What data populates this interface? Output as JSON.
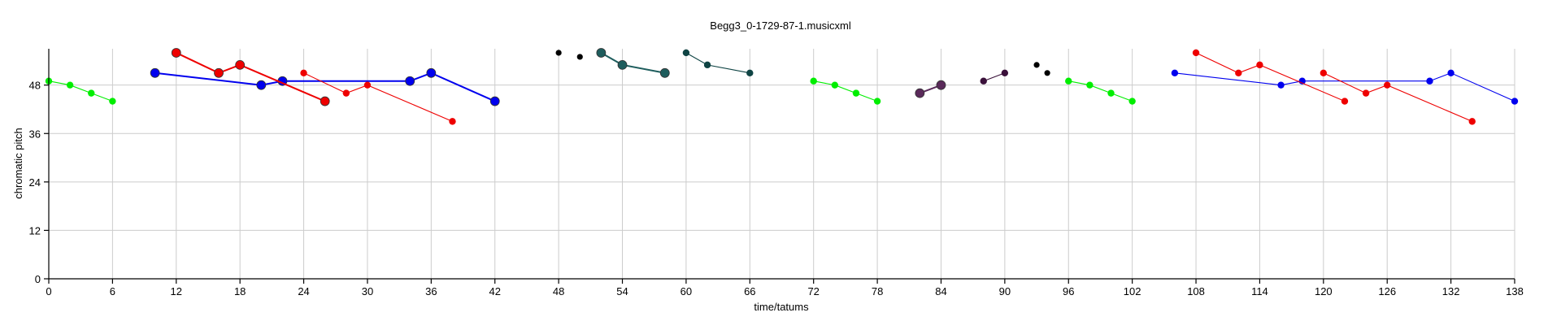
{
  "chart_data": {
    "type": "line",
    "title": "Begg3_0-1729-87-1.musicxml",
    "xlabel": "time/tatums",
    "ylabel": "chromatic pitch",
    "xlim": [
      0,
      138
    ],
    "ylim": [
      0,
      57
    ],
    "x_ticks": [
      0,
      6,
      12,
      18,
      24,
      30,
      36,
      42,
      48,
      54,
      60,
      66,
      72,
      78,
      84,
      90,
      96,
      102,
      108,
      114,
      120,
      126,
      132,
      138
    ],
    "y_ticks": [
      0,
      12,
      24,
      36,
      48
    ],
    "grid": true,
    "series": [
      {
        "color": "#00ee00",
        "marker": "small",
        "points": [
          [
            0,
            49
          ],
          [
            2,
            48
          ],
          [
            4,
            46
          ],
          [
            6,
            44
          ]
        ]
      },
      {
        "color": "#0000ee",
        "marker": "large",
        "points": [
          [
            10,
            51
          ],
          [
            20,
            48
          ],
          [
            22,
            49
          ],
          [
            34,
            49
          ],
          [
            36,
            51
          ],
          [
            42,
            44
          ]
        ]
      },
      {
        "color": "#ee0000",
        "marker": "large",
        "points": [
          [
            12,
            56
          ],
          [
            16,
            51
          ],
          [
            18,
            53
          ],
          [
            26,
            44
          ]
        ]
      },
      {
        "color": "#ee0000",
        "marker": "small",
        "points": [
          [
            24,
            51
          ],
          [
            28,
            46
          ],
          [
            30,
            48
          ],
          [
            38,
            39
          ]
        ]
      },
      {
        "color": "#000000",
        "marker": "dot",
        "points": [
          [
            48,
            56
          ]
        ]
      },
      {
        "color": "#000000",
        "marker": "dot",
        "points": [
          [
            50,
            55
          ]
        ]
      },
      {
        "color": "#1e5d5d",
        "marker": "large",
        "points": [
          [
            52,
            56
          ],
          [
            54,
            53
          ],
          [
            58,
            51
          ]
        ]
      },
      {
        "color": "#0f4444",
        "marker": "small",
        "points": [
          [
            60,
            56
          ],
          [
            62,
            53
          ],
          [
            66,
            51
          ]
        ]
      },
      {
        "color": "#00ee00",
        "marker": "small",
        "points": [
          [
            72,
            49
          ],
          [
            74,
            48
          ],
          [
            76,
            46
          ],
          [
            78,
            44
          ]
        ]
      },
      {
        "color": "#5a2a5a",
        "marker": "large",
        "points": [
          [
            82,
            46
          ],
          [
            84,
            48
          ]
        ]
      },
      {
        "color": "#3a103a",
        "marker": "small",
        "points": [
          [
            88,
            49
          ],
          [
            90,
            51
          ]
        ]
      },
      {
        "color": "#000000",
        "marker": "dot",
        "points": [
          [
            93,
            53
          ]
        ]
      },
      {
        "color": "#000000",
        "marker": "dot",
        "points": [
          [
            94,
            51
          ]
        ]
      },
      {
        "color": "#00ee00",
        "marker": "small",
        "points": [
          [
            96,
            49
          ],
          [
            98,
            48
          ],
          [
            100,
            46
          ],
          [
            102,
            44
          ]
        ]
      },
      {
        "color": "#0000ee",
        "marker": "small",
        "points": [
          [
            106,
            51
          ],
          [
            116,
            48
          ],
          [
            118,
            49
          ],
          [
            130,
            49
          ],
          [
            132,
            51
          ],
          [
            138,
            44
          ]
        ]
      },
      {
        "color": "#ee0000",
        "marker": "small",
        "points": [
          [
            108,
            56
          ],
          [
            112,
            51
          ],
          [
            114,
            53
          ],
          [
            122,
            44
          ]
        ]
      },
      {
        "color": "#ee0000",
        "marker": "small",
        "points": [
          [
            120,
            51
          ],
          [
            124,
            46
          ],
          [
            126,
            48
          ],
          [
            134,
            39
          ]
        ]
      }
    ]
  }
}
